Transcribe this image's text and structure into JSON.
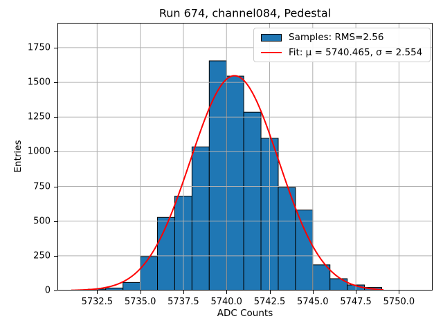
{
  "chart_data": {
    "type": "bar",
    "subtype": "histogram",
    "title": "Run 674, channel084, Pedestal",
    "xlabel": "ADC Counts",
    "ylabel": "Entries",
    "bin_width": 1,
    "bin_left_edges": [
      5732,
      5733,
      5734,
      5735,
      5736,
      5737,
      5738,
      5739,
      5740,
      5741,
      5742,
      5743,
      5744,
      5745,
      5746,
      5747,
      5748
    ],
    "counts": [
      10,
      18,
      58,
      245,
      527,
      680,
      1035,
      1655,
      1545,
      1285,
      1097,
      743,
      580,
      185,
      85,
      40,
      22
    ],
    "xlim": [
      5730.2,
      5751.95
    ],
    "ylim": [
      0,
      1929
    ],
    "xticks": [
      5732.5,
      5735.0,
      5737.5,
      5740.0,
      5742.5,
      5745.0,
      5747.5,
      5750.0
    ],
    "xtick_labels": [
      "5732.5",
      "5735.0",
      "5737.5",
      "5740.0",
      "5742.5",
      "5745.0",
      "5747.5",
      "5750.0"
    ],
    "yticks": [
      0,
      250,
      500,
      750,
      1000,
      1250,
      1500,
      1750
    ],
    "ytick_labels": [
      "0",
      "250",
      "500",
      "750",
      "1000",
      "1250",
      "1500",
      "1750"
    ],
    "grid": true,
    "legend": {
      "position": "upper right",
      "entries": [
        {
          "swatch": "patch",
          "label": "Samples: RMS=2.56"
        },
        {
          "swatch": "line",
          "label": "Fit: μ = 5740.465, σ = 2.554"
        }
      ]
    },
    "fit": {
      "type": "gaussian",
      "mu": 5740.465,
      "sigma": 2.554,
      "amplitude": 1548,
      "x_start": 5731.0,
      "x_end": 5749.15
    },
    "stats": {
      "rms": 2.56
    },
    "colors": {
      "bar_fill": "#1f77b4",
      "bar_edge": "#000000",
      "fit_line": "#ff0000",
      "grid": "#b0b0b0",
      "spine": "#000000"
    }
  }
}
